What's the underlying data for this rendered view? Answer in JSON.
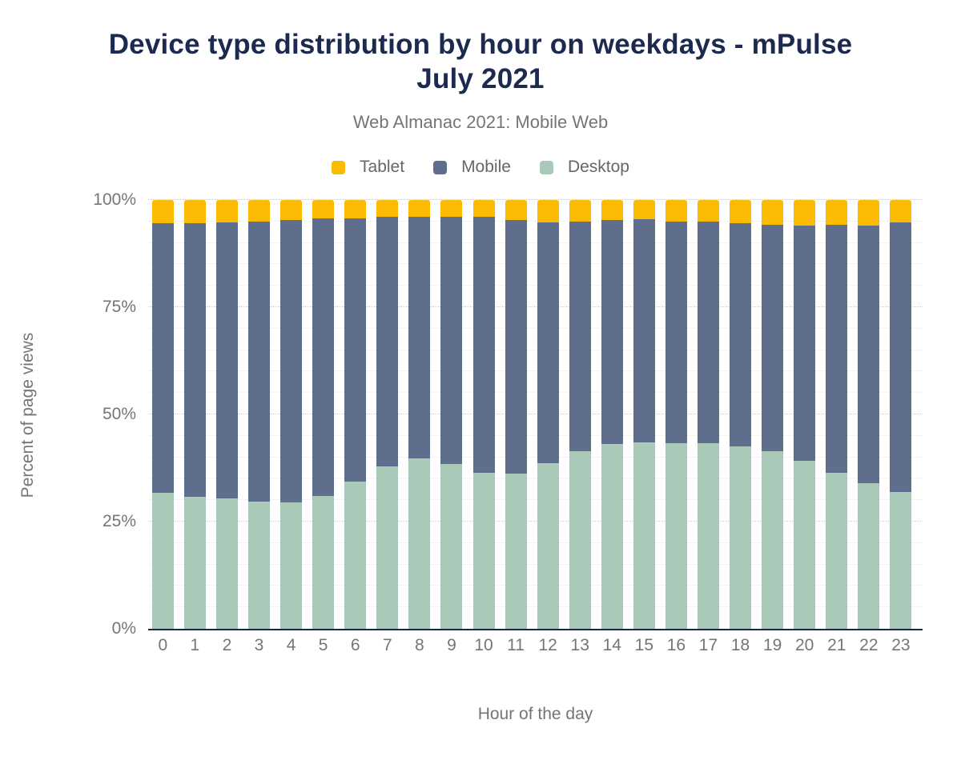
{
  "header": {
    "title": "Device type distribution by hour on weekdays - mPulse July 2021",
    "subtitle": "Web Almanac 2021: Mobile Web"
  },
  "legend": [
    {
      "label": "Tablet",
      "color": "#fbbb03"
    },
    {
      "label": "Mobile",
      "color": "#5f6e8c"
    },
    {
      "label": "Desktop",
      "color": "#a9cab9"
    }
  ],
  "colors": {
    "title": "#1b2a4e",
    "axis_line": "#16294b",
    "text_gray": "#757575",
    "minor_grid": "#f2f2f2",
    "major_grid": "#cccccc"
  },
  "chart_data": {
    "type": "bar",
    "stacked": true,
    "stack_order_bottom_to_top": [
      "Desktop",
      "Mobile",
      "Tablet"
    ],
    "title": "Device type distribution by hour on weekdays - mPulse July 2021",
    "subtitle": "Web Almanac 2021: Mobile Web",
    "xlabel": "Hour of the day",
    "ylabel": "Percent of page views",
    "categories": [
      "0",
      "1",
      "2",
      "3",
      "4",
      "5",
      "6",
      "7",
      "8",
      "9",
      "10",
      "11",
      "12",
      "13",
      "14",
      "15",
      "16",
      "17",
      "18",
      "19",
      "20",
      "21",
      "22",
      "23"
    ],
    "series": [
      {
        "name": "Tablet",
        "color": "#fbbb03",
        "values": [
          5.5,
          5.5,
          5.3,
          5.0,
          4.6,
          4.3,
          4.2,
          4.0,
          3.9,
          4.0,
          4.0,
          4.6,
          5.2,
          5.1,
          4.7,
          4.5,
          5.0,
          5.0,
          5.4,
          5.8,
          5.9,
          5.8,
          5.9,
          5.3
        ]
      },
      {
        "name": "Mobile",
        "color": "#5f6e8c",
        "values": [
          62.8,
          63.7,
          64.2,
          65.3,
          65.9,
          64.7,
          61.4,
          58.1,
          56.4,
          57.6,
          59.7,
          59.3,
          56.1,
          53.4,
          52.2,
          52.1,
          51.7,
          51.8,
          52.1,
          52.7,
          55.0,
          57.9,
          60.1,
          62.8
        ]
      },
      {
        "name": "Desktop",
        "color": "#a9cab9",
        "values": [
          31.7,
          30.8,
          30.5,
          29.7,
          29.5,
          31.0,
          34.4,
          37.9,
          39.7,
          38.4,
          36.3,
          36.1,
          38.7,
          41.5,
          43.1,
          43.4,
          43.3,
          43.2,
          42.5,
          41.5,
          39.1,
          36.3,
          34.0,
          31.9
        ]
      }
    ],
    "ylim": [
      0,
      100
    ],
    "yticks": [
      0,
      25,
      50,
      75,
      100
    ],
    "ytick_labels": [
      "0%",
      "25%",
      "50%",
      "75%",
      "100%"
    ],
    "minor_tick_step": 5,
    "grid": true,
    "legend_position": "top"
  }
}
